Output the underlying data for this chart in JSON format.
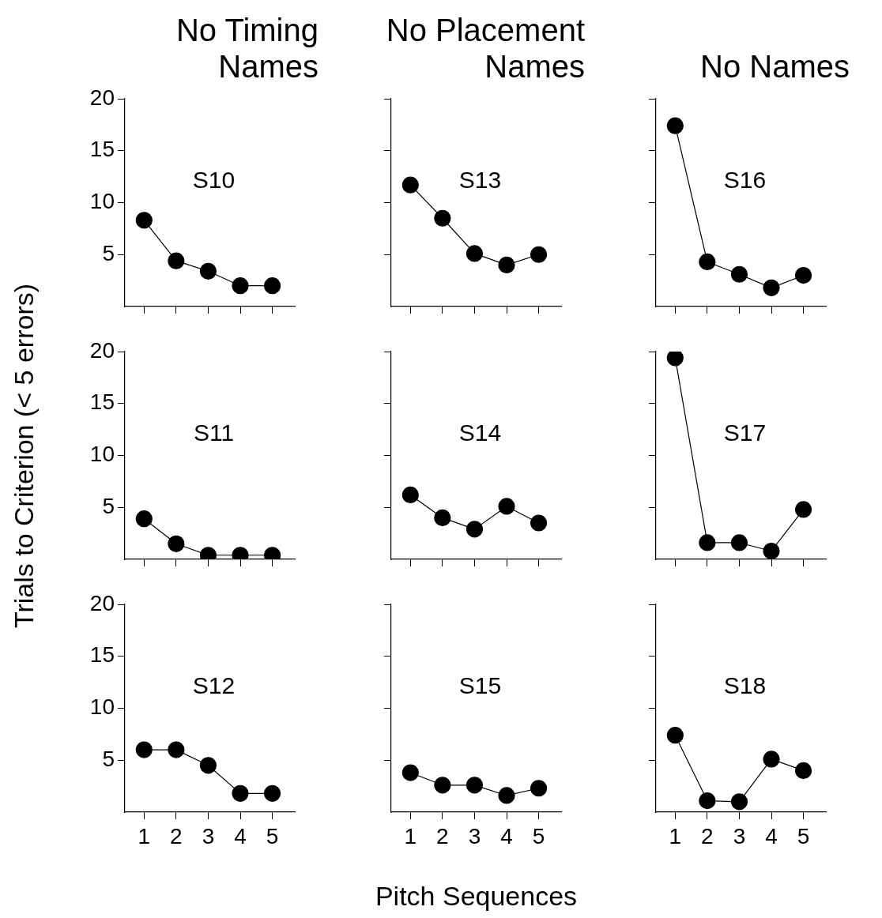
{
  "chart_data": [
    {
      "type": "line",
      "title": "No Timing Names",
      "annotations": [
        "S10"
      ],
      "x": [
        1,
        2,
        3,
        4,
        5
      ],
      "values": [
        8.3,
        4.4,
        3.4,
        2,
        2
      ],
      "color": "#000000",
      "xlim": [
        0.4,
        5.7
      ],
      "xticks": [
        1,
        2,
        3,
        4,
        5
      ],
      "ylim": [
        0,
        20
      ],
      "yticks": [
        5,
        10,
        15,
        20
      ],
      "tick_labels": "y",
      "marker": "circle",
      "grid": false,
      "legend": false
    },
    {
      "type": "line",
      "title": "No Placement Names",
      "annotations": [
        "S13"
      ],
      "x": [
        1,
        2,
        3,
        4,
        5
      ],
      "values": [
        11.7,
        8.5,
        5.1,
        4.0,
        5.0
      ],
      "color": "#000000",
      "xlim": [
        0.4,
        5.7
      ],
      "xticks": [
        1,
        2,
        3,
        4,
        5
      ],
      "ylim": [
        0,
        20
      ],
      "yticks": [
        5,
        10,
        15,
        20
      ],
      "tick_labels": false,
      "marker": "circle",
      "grid": false,
      "legend": false
    },
    {
      "type": "line",
      "title": "No Names",
      "annotations": [
        "S16"
      ],
      "x": [
        1,
        2,
        3,
        4,
        5
      ],
      "values": [
        17.4,
        4.3,
        3.1,
        1.8,
        3.0
      ],
      "color": "#000000",
      "xlim": [
        0.4,
        5.7
      ],
      "xticks": [
        1,
        2,
        3,
        4,
        5
      ],
      "ylim": [
        0,
        20
      ],
      "yticks": [
        5,
        10,
        15,
        20
      ],
      "tick_labels": false,
      "marker": "circle",
      "grid": false,
      "legend": false
    },
    {
      "type": "line",
      "ylabel": "Trials to Criterion (< 5 errors)",
      "annotations": [
        "S11"
      ],
      "x": [
        1,
        2,
        3,
        4,
        5
      ],
      "values": [
        3.9,
        1.5,
        0.4,
        0.4,
        0.4
      ],
      "color": "#000000",
      "xlim": [
        0.4,
        5.7
      ],
      "xticks": [
        1,
        2,
        3,
        4,
        5
      ],
      "ylim": [
        0,
        20
      ],
      "yticks": [
        5,
        10,
        15,
        20
      ],
      "tick_labels": "y",
      "marker": "circle",
      "grid": false,
      "legend": false
    },
    {
      "type": "line",
      "annotations": [
        "S14"
      ],
      "x": [
        1,
        2,
        3,
        4,
        5
      ],
      "values": [
        6.2,
        4.0,
        2.9,
        5.1,
        3.5
      ],
      "color": "#000000",
      "xlim": [
        0.4,
        5.7
      ],
      "xticks": [
        1,
        2,
        3,
        4,
        5
      ],
      "ylim": [
        0,
        20
      ],
      "yticks": [
        5,
        10,
        15,
        20
      ],
      "tick_labels": false,
      "marker": "circle",
      "grid": false,
      "legend": false
    },
    {
      "type": "line",
      "annotations": [
        "S17"
      ],
      "x": [
        1,
        2,
        3,
        4,
        5
      ],
      "values": [
        19.4,
        1.6,
        1.6,
        0.8,
        4.8
      ],
      "color": "#000000",
      "xlim": [
        0.4,
        5.7
      ],
      "xticks": [
        1,
        2,
        3,
        4,
        5
      ],
      "ylim": [
        0,
        20
      ],
      "yticks": [
        5,
        10,
        15,
        20
      ],
      "tick_labels": false,
      "marker": "circle",
      "grid": false,
      "legend": false
    },
    {
      "type": "line",
      "annotations": [
        "S12"
      ],
      "x": [
        1,
        2,
        3,
        4,
        5
      ],
      "values": [
        6.0,
        6.0,
        4.5,
        1.8,
        1.8
      ],
      "color": "#000000",
      "xlim": [
        0.4,
        5.7
      ],
      "xticks": [
        1,
        2,
        3,
        4,
        5
      ],
      "ylim": [
        0,
        20
      ],
      "yticks": [
        5,
        10,
        15,
        20
      ],
      "marker": "circle",
      "grid": false,
      "legend": false
    },
    {
      "type": "line",
      "xlabel": "Pitch Sequences",
      "annotations": [
        "S15"
      ],
      "x": [
        1,
        2,
        3,
        4,
        5
      ],
      "values": [
        3.8,
        2.6,
        2.6,
        1.6,
        2.3
      ],
      "color": "#000000",
      "xlim": [
        0.4,
        5.7
      ],
      "xticks": [
        1,
        2,
        3,
        4,
        5
      ],
      "ylim": [
        0,
        20
      ],
      "yticks": [
        5,
        10,
        15,
        20
      ],
      "tick_labels": "x",
      "marker": "circle",
      "grid": false,
      "legend": false
    },
    {
      "type": "line",
      "annotations": [
        "S18"
      ],
      "x": [
        1,
        2,
        3,
        4,
        5
      ],
      "values": [
        7.4,
        1.1,
        1.0,
        5.1,
        4.0
      ],
      "color": "#000000",
      "xlim": [
        0.4,
        5.7
      ],
      "xticks": [
        1,
        2,
        3,
        4,
        5
      ],
      "ylim": [
        0,
        20
      ],
      "yticks": [
        5,
        10,
        15,
        20
      ],
      "tick_labels": "x",
      "marker": "circle",
      "grid": false,
      "legend": false
    }
  ]
}
